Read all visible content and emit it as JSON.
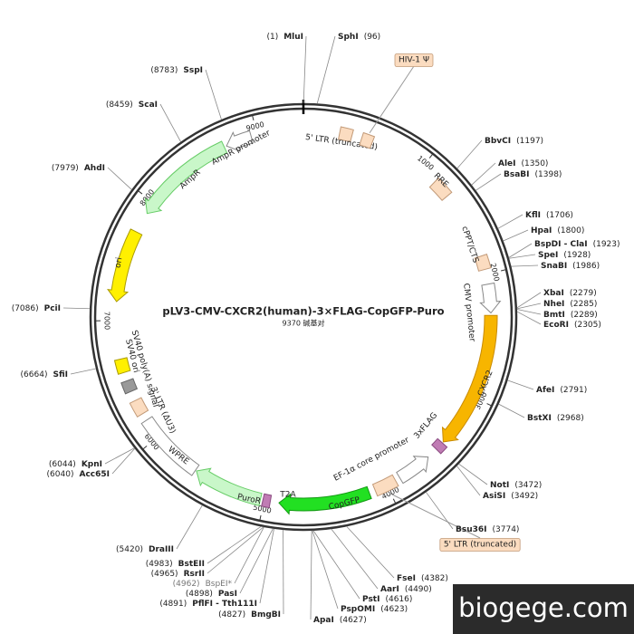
{
  "title": "pLV3-CMV-CXCR2(human)-3×FLAG-CopGFP-Puro",
  "length": {
    "value": 9370,
    "label": "9370 碱基对"
  },
  "ticks": [
    1000,
    2000,
    3000,
    4000,
    5000,
    6000,
    7000,
    8000,
    9000
  ],
  "features": [
    {
      "name": "5' LTR (truncated)",
      "start": 290,
      "end": 390,
      "color": "#fbdcc0",
      "direction": 0
    },
    {
      "name": "HIV-1 Ψ",
      "start": 470,
      "end": 560,
      "color": "#fbdcc0",
      "direction": 0
    },
    {
      "name": "RRE",
      "start": 1150,
      "end": 1300,
      "color": "#fbdcc0",
      "direction": 0
    },
    {
      "name": "cPPT/CTS",
      "start": 1850,
      "end": 1960,
      "color": "#fbdcc0",
      "direction": 0
    },
    {
      "name": "CMV promoter",
      "start": 2080,
      "end": 2310,
      "color": "#ffffff",
      "direction": 1
    },
    {
      "name": "CXCR2",
      "start": 2330,
      "end": 3430,
      "color": "#f7b500",
      "direction": 1
    },
    {
      "name": "3xFLAG",
      "start": 3440,
      "end": 3510,
      "color": "#c07cb4",
      "direction": 0
    },
    {
      "name": "EF-1α core promoter",
      "start": 3600,
      "end": 3880,
      "color": "#ffffff",
      "direction": -1
    },
    {
      "name": "5' LTR (truncated)",
      "start": 3920,
      "end": 4100,
      "color": "#fbdcc0",
      "direction": 0
    },
    {
      "name": "CopGFP",
      "start": 4150,
      "end": 4880,
      "color": "#22e022",
      "direction": 1
    },
    {
      "name": "T2A",
      "start": 4950,
      "end": 5010,
      "color": "#c07cb4",
      "direction": 0
    },
    {
      "name": "PuroR",
      "start": 5030,
      "end": 5590,
      "color": "#c9f7c9",
      "direction": 1
    },
    {
      "name": "WPRE",
      "start": 5600,
      "end": 6160,
      "color": "#ffffff",
      "direction": 0
    },
    {
      "name": "3' LTR (ΔU3)",
      "start": 6220,
      "end": 6340,
      "color": "#fbdcc0",
      "direction": 0
    },
    {
      "name": "SV40 poly(A) signal",
      "start": 6420,
      "end": 6510,
      "color": "#999999",
      "direction": 0
    },
    {
      "name": "SV40 ori",
      "start": 6580,
      "end": 6690,
      "color": "#fff000",
      "direction": 0
    },
    {
      "name": "ori",
      "start": 7150,
      "end": 7730,
      "color": "#fff000",
      "direction": -1
    },
    {
      "name": "AmpR",
      "start": 7900,
      "end": 8720,
      "color": "#c9f7c9",
      "direction": -1
    },
    {
      "name": "AmpR promoter",
      "start": 8740,
      "end": 8950,
      "color": "#ffffff",
      "direction": -1
    }
  ],
  "sites": [
    {
      "name": "MluI",
      "position": {
        "value": 1,
        "label": "(1)"
      }
    },
    {
      "name": "SphI",
      "position": {
        "value": 96,
        "label": "(96)"
      }
    },
    {
      "name": "BbvCI",
      "position": {
        "value": 1197,
        "label": "(1197)"
      }
    },
    {
      "name": "AleI",
      "position": {
        "value": 1350,
        "label": "(1350)"
      }
    },
    {
      "name": "BsaBI",
      "position": {
        "value": 1398,
        "label": "(1398)"
      }
    },
    {
      "name": "KflI",
      "position": {
        "value": 1706,
        "label": "(1706)"
      }
    },
    {
      "name": "HpaI",
      "position": {
        "value": 1800,
        "label": "(1800)"
      }
    },
    {
      "name": "BspDI - ClaI",
      "position": {
        "value": 1923,
        "label": "(1923)"
      }
    },
    {
      "name": "SpeI",
      "position": {
        "value": 1928,
        "label": "(1928)"
      }
    },
    {
      "name": "SnaBI",
      "position": {
        "value": 1986,
        "label": "(1986)"
      }
    },
    {
      "name": "XbaI",
      "position": {
        "value": 2279,
        "label": "(2279)"
      }
    },
    {
      "name": "NheI",
      "position": {
        "value": 2285,
        "label": "(2285)"
      }
    },
    {
      "name": "BmtI",
      "position": {
        "value": 2289,
        "label": "(2289)"
      }
    },
    {
      "name": "EcoRI",
      "position": {
        "value": 2305,
        "label": "(2305)"
      }
    },
    {
      "name": "AfeI",
      "position": {
        "value": 2791,
        "label": "(2791)"
      }
    },
    {
      "name": "BstXI",
      "position": {
        "value": 2968,
        "label": "(2968)"
      }
    },
    {
      "name": "NotI",
      "position": {
        "value": 3472,
        "label": "(3472)"
      }
    },
    {
      "name": "AsiSI",
      "position": {
        "value": 3492,
        "label": "(3492)"
      }
    },
    {
      "name": "Bsu36I",
      "position": {
        "value": 3774,
        "label": "(3774)"
      }
    },
    {
      "name": "FseI",
      "position": {
        "value": 4382,
        "label": "(4382)"
      }
    },
    {
      "name": "AarI",
      "position": {
        "value": 4490,
        "label": "(4490)"
      }
    },
    {
      "name": "PstI",
      "position": {
        "value": 4616,
        "label": "(4616)"
      }
    },
    {
      "name": "PspOMI",
      "position": {
        "value": 4623,
        "label": "(4623)"
      }
    },
    {
      "name": "ApaI",
      "position": {
        "value": 4627,
        "label": "(4627)"
      }
    },
    {
      "name": "BmgBI",
      "position": {
        "value": 4827,
        "label": "(4827)"
      }
    },
    {
      "name": "PflFI - Tth111I",
      "position": {
        "value": 4891,
        "label": "(4891)"
      }
    },
    {
      "name": "PasI",
      "position": {
        "value": 4898,
        "label": "(4898)"
      }
    },
    {
      "name": "BspEI*",
      "position": {
        "value": 4962,
        "label": "(4962)"
      },
      "color": "#777777"
    },
    {
      "name": "RsrII",
      "position": {
        "value": 4965,
        "label": "(4965)"
      }
    },
    {
      "name": "BstEII",
      "position": {
        "value": 4983,
        "label": "(4983)"
      }
    },
    {
      "name": "DraIII",
      "position": {
        "value": 5420,
        "label": "(5420)"
      }
    },
    {
      "name": "KpnI",
      "position": {
        "value": 6044,
        "label": "(6044)"
      }
    },
    {
      "name": "Acc65I",
      "position": {
        "value": 6040,
        "label": "(6040)"
      }
    },
    {
      "name": "SfiI",
      "position": {
        "value": 6664,
        "label": "(6664)"
      }
    },
    {
      "name": "PciI",
      "position": {
        "value": 7086,
        "label": "(7086)"
      }
    },
    {
      "name": "AhdI",
      "position": {
        "value": 7979,
        "label": "(7979)"
      }
    },
    {
      "name": "ScaI",
      "position": {
        "value": 8459,
        "label": "(8459)"
      }
    },
    {
      "name": "SspI",
      "position": {
        "value": 8783,
        "label": "(8783)"
      }
    }
  ],
  "watermark": "biogege.com"
}
